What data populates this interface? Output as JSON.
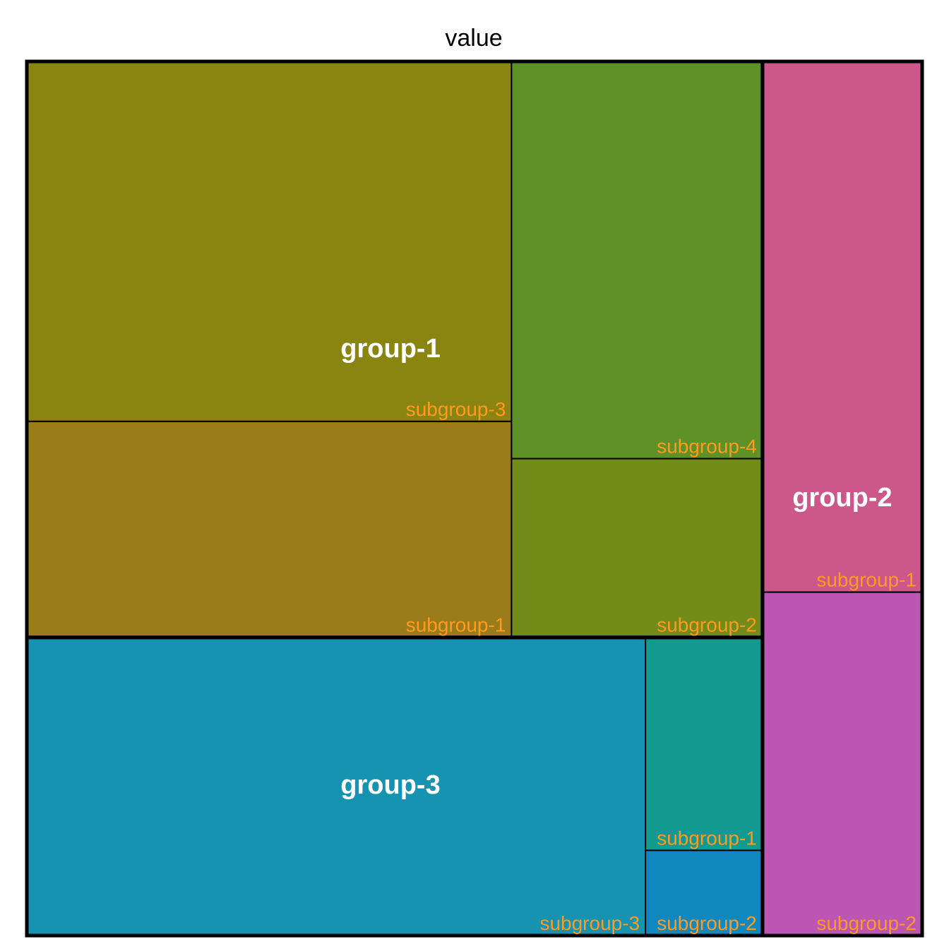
{
  "chart_data": {
    "type": "treemap",
    "title": "value",
    "groups": [
      {
        "name": "group-1",
        "color": "#8A8410",
        "subgroups": [
          {
            "name": "subgroup-3",
            "value": 35,
            "color": "#8A8410"
          },
          {
            "name": "subgroup-1",
            "value": 21,
            "color": "#9A7D1A"
          },
          {
            "name": "subgroup-4",
            "value": 20,
            "color": "#5E9128"
          },
          {
            "name": "subgroup-2",
            "value": 9,
            "color": "#738B19"
          }
        ]
      },
      {
        "name": "group-3",
        "color": "#1593B0",
        "subgroups": [
          {
            "name": "subgroup-3",
            "value": 37,
            "color": "#1593B0"
          },
          {
            "name": "subgroup-1",
            "value": 5,
            "color": "#139A90"
          },
          {
            "name": "subgroup-2",
            "value": 2,
            "color": "#1188C0"
          }
        ]
      },
      {
        "name": "group-2",
        "color": "#CC578B",
        "subgroups": [
          {
            "name": "subgroup-1",
            "value": 17,
            "color": "#CC578B"
          },
          {
            "name": "subgroup-2",
            "value": 11,
            "color": "#BB57B3"
          }
        ]
      }
    ]
  }
}
